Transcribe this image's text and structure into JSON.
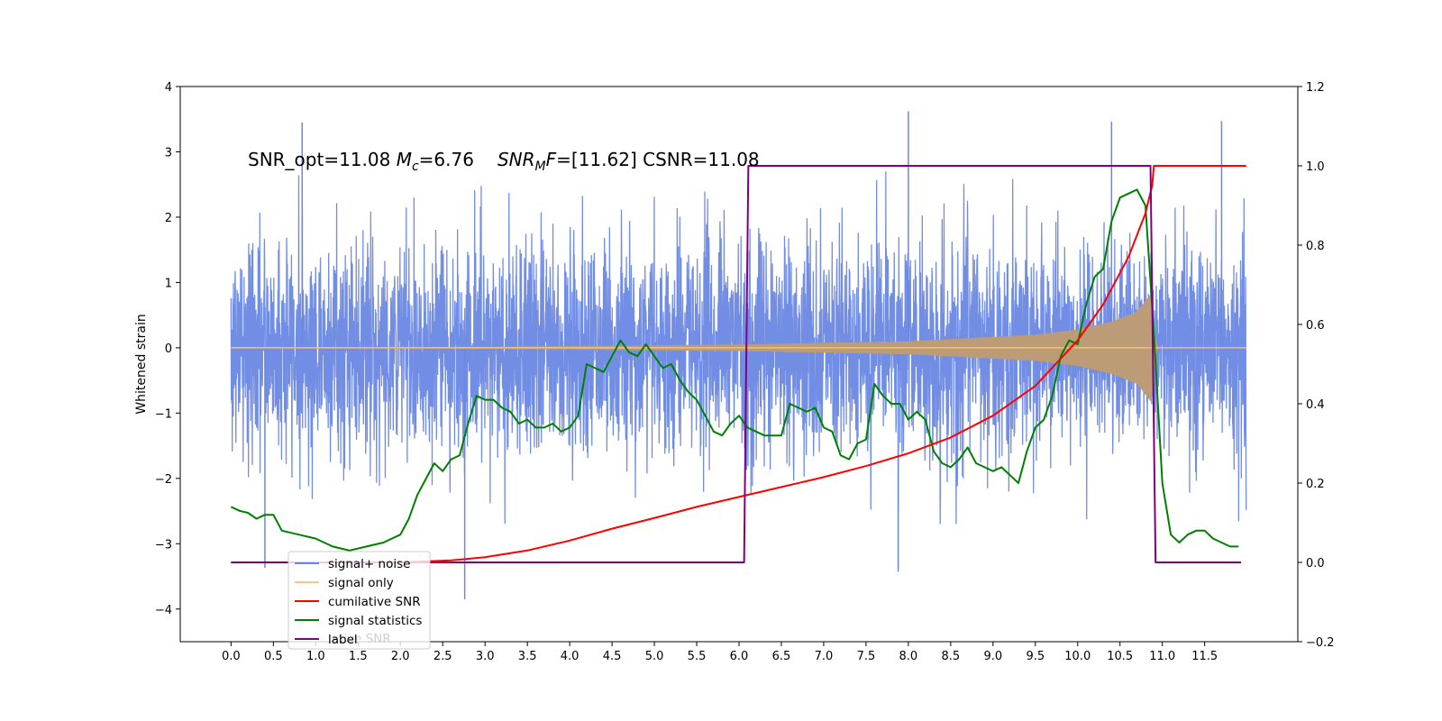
{
  "chart_data": {
    "type": "line",
    "title": "",
    "annotation": {
      "prefix": "SNR_opt=11.08 ",
      "mc_sym": "M",
      "mc_sub": "c",
      "mc_val": "=6.76",
      "snr_sym": "SNR",
      "snr_sub": "M",
      "snr_f": "F",
      "snr_val": "=[11.62] CSNR=11.08"
    },
    "xlabel": "",
    "ylabel": "Whitened strain",
    "xlim": [
      -0.6,
      12.6
    ],
    "ylim_left": [
      -4.5,
      4.0
    ],
    "ylim_right": [
      -0.2,
      1.2
    ],
    "x_ticks": [
      0.0,
      0.5,
      1.0,
      1.5,
      2.0,
      2.5,
      3.0,
      3.5,
      4.0,
      4.5,
      5.0,
      5.5,
      6.0,
      6.5,
      7.0,
      7.5,
      8.0,
      8.5,
      9.0,
      9.5,
      10.0,
      10.5,
      11.0,
      11.5
    ],
    "x_tick_labels": [
      "0.0",
      "0.5",
      "1.0",
      "1.5",
      "2.0",
      "2.5",
      "3.0",
      "3.5",
      "4.0",
      "4.5",
      "5.0",
      "5.5",
      "6.0",
      "6.5",
      "7.0",
      "7.5",
      "8.0",
      "8.5",
      "9.0",
      "9.5",
      "10.0",
      "10.5",
      "11.0",
      "11.5"
    ],
    "y_left_ticks": [
      4,
      3,
      2,
      1,
      0,
      -1,
      -2,
      -3,
      -4
    ],
    "y_left_tick_labels": [
      "4",
      "3",
      "2",
      "1",
      "0",
      "−1",
      "−2",
      "−3",
      "−4"
    ],
    "y_right_ticks": [
      1.2,
      1.0,
      0.8,
      0.6,
      0.4,
      0.2,
      0.0,
      -0.2
    ],
    "y_right_tick_labels": [
      "1.2",
      "1.0",
      "0.8",
      "0.6",
      "0.4",
      "0.2",
      "0.0",
      "−0.2"
    ],
    "grid": false,
    "legend_position": "lower-left",
    "legend": [
      {
        "label": "signal+ noise",
        "color": "#6a87e3"
      },
      {
        "label": "signal only",
        "color": "#ffc870"
      },
      {
        "label": "cumilative SNR",
        "color": "#ff0000"
      },
      {
        "label": "signal statistics",
        "color": "#008000"
      },
      {
        "label": "label",
        "color": "#800080"
      }
    ],
    "legend_ghost_text": "lative SNR",
    "series": [
      {
        "name": "signal+ noise",
        "axis": "left",
        "color": "#6a87e3",
        "kind": "noise",
        "x_range": [
          0.0,
          11.99
        ],
        "envelope": 1.3,
        "peaks": [
          [
            0.84,
            3.45
          ],
          [
            2.76,
            -3.85
          ],
          [
            7.88,
            -3.43
          ],
          [
            8.0,
            3.62
          ],
          [
            10.4,
            3.46
          ],
          [
            11.7,
            3.47
          ],
          [
            0.4,
            -3.37
          ]
        ]
      },
      {
        "name": "signal only",
        "axis": "left",
        "color": "#ffc870",
        "kind": "chirp",
        "x_range": [
          0.0,
          11.99
        ],
        "amplitude": [
          [
            0.0,
            0.01
          ],
          [
            3.0,
            0.015
          ],
          [
            6.0,
            0.05
          ],
          [
            8.0,
            0.1
          ],
          [
            9.5,
            0.2
          ],
          [
            10.0,
            0.28
          ],
          [
            10.4,
            0.4
          ],
          [
            10.7,
            0.55
          ],
          [
            10.88,
            0.85
          ],
          [
            10.92,
            0.0
          ],
          [
            11.99,
            0.0
          ]
        ]
      },
      {
        "name": "cumilative SNR",
        "axis": "right",
        "color": "#ff0000",
        "x": [
          0.0,
          1.0,
          2.0,
          2.6,
          3.0,
          3.5,
          4.0,
          4.5,
          5.0,
          5.5,
          6.0,
          6.5,
          7.0,
          7.5,
          8.0,
          8.5,
          9.0,
          9.5,
          10.0,
          10.3,
          10.6,
          10.8,
          10.88,
          10.9,
          11.99
        ],
        "y": [
          0.0,
          0.0,
          0.0,
          0.005,
          0.013,
          0.03,
          0.055,
          0.085,
          0.112,
          0.14,
          0.165,
          0.19,
          0.215,
          0.243,
          0.275,
          0.315,
          0.37,
          0.445,
          0.56,
          0.65,
          0.77,
          0.88,
          0.95,
          1.0,
          1.0
        ]
      },
      {
        "name": "signal statistics",
        "axis": "right",
        "color": "#008000",
        "x": [
          0.0,
          0.1,
          0.2,
          0.3,
          0.4,
          0.5,
          0.6,
          0.8,
          1.0,
          1.2,
          1.4,
          1.6,
          1.8,
          2.0,
          2.1,
          2.2,
          2.3,
          2.4,
          2.5,
          2.6,
          2.7,
          2.8,
          2.9,
          3.0,
          3.1,
          3.2,
          3.3,
          3.4,
          3.5,
          3.6,
          3.7,
          3.8,
          3.9,
          4.0,
          4.1,
          4.2,
          4.3,
          4.4,
          4.5,
          4.6,
          4.7,
          4.8,
          4.9,
          5.0,
          5.1,
          5.2,
          5.3,
          5.4,
          5.5,
          5.6,
          5.7,
          5.8,
          5.9,
          6.0,
          6.1,
          6.2,
          6.3,
          6.5,
          6.6,
          6.7,
          6.8,
          6.9,
          7.0,
          7.1,
          7.2,
          7.3,
          7.4,
          7.5,
          7.6,
          7.7,
          7.8,
          7.9,
          8.0,
          8.1,
          8.2,
          8.3,
          8.4,
          8.5,
          8.6,
          8.7,
          8.8,
          8.9,
          9.0,
          9.1,
          9.2,
          9.3,
          9.4,
          9.5,
          9.6,
          9.7,
          9.8,
          9.9,
          10.0,
          10.1,
          10.2,
          10.3,
          10.4,
          10.5,
          10.6,
          10.7,
          10.8,
          10.9,
          11.0,
          11.1,
          11.2,
          11.3,
          11.4,
          11.5,
          11.6,
          11.7,
          11.8,
          11.9
        ],
        "y": [
          0.14,
          0.13,
          0.125,
          0.11,
          0.12,
          0.12,
          0.08,
          0.07,
          0.06,
          0.04,
          0.03,
          0.04,
          0.05,
          0.07,
          0.11,
          0.17,
          0.21,
          0.25,
          0.23,
          0.26,
          0.27,
          0.35,
          0.42,
          0.41,
          0.41,
          0.39,
          0.38,
          0.35,
          0.36,
          0.34,
          0.34,
          0.35,
          0.33,
          0.34,
          0.37,
          0.5,
          0.49,
          0.48,
          0.52,
          0.56,
          0.53,
          0.52,
          0.55,
          0.52,
          0.49,
          0.5,
          0.46,
          0.43,
          0.41,
          0.37,
          0.33,
          0.32,
          0.35,
          0.37,
          0.34,
          0.33,
          0.32,
          0.32,
          0.4,
          0.39,
          0.38,
          0.39,
          0.34,
          0.33,
          0.27,
          0.26,
          0.3,
          0.31,
          0.45,
          0.42,
          0.4,
          0.4,
          0.36,
          0.38,
          0.36,
          0.28,
          0.25,
          0.24,
          0.26,
          0.29,
          0.25,
          0.24,
          0.23,
          0.24,
          0.22,
          0.2,
          0.28,
          0.34,
          0.36,
          0.42,
          0.52,
          0.56,
          0.55,
          0.65,
          0.72,
          0.74,
          0.86,
          0.92,
          0.93,
          0.94,
          0.9,
          0.58,
          0.2,
          0.07,
          0.05,
          0.07,
          0.08,
          0.08,
          0.06,
          0.05,
          0.04,
          0.04
        ]
      },
      {
        "name": "label",
        "axis": "right",
        "color": "#800080",
        "x": [
          0.0,
          6.06,
          6.11,
          10.86,
          10.92,
          11.93
        ],
        "y": [
          0.0,
          0.0,
          1.0,
          1.0,
          0.0,
          0.0
        ]
      }
    ]
  }
}
